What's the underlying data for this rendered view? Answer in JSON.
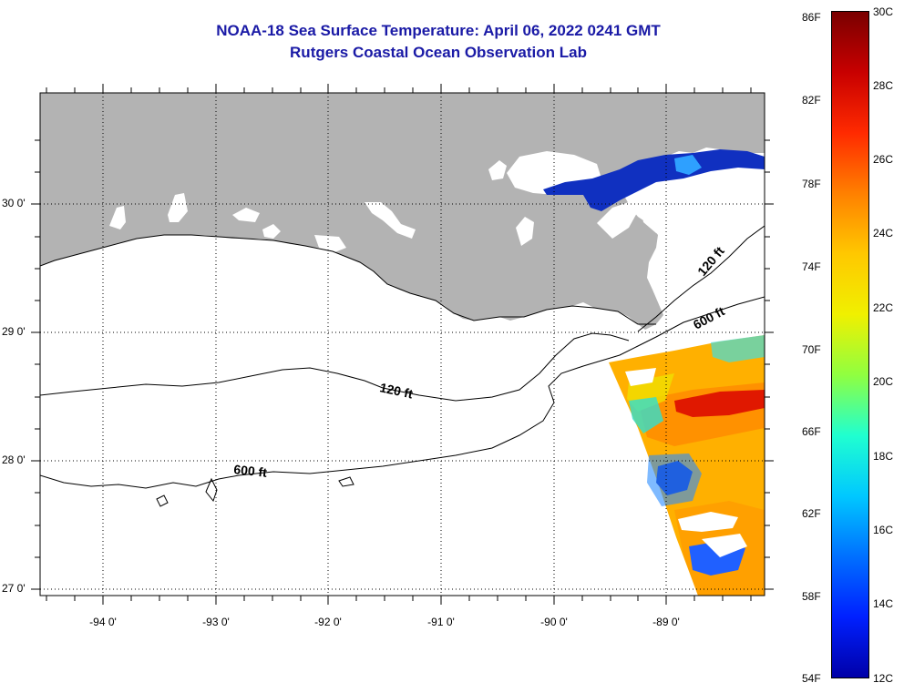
{
  "title": {
    "line1": "NOAA-18 Sea Surface Temperature:  April 06, 2022 0241 GMT",
    "line2": "Rutgers Coastal Ocean Observation Lab"
  },
  "map": {
    "longitude_labels": [
      "-94 0'",
      "-93 0'",
      "-92 0'",
      "-91 0'",
      "-90 0'",
      "-89 0'"
    ],
    "latitude_labels": [
      "30 0'",
      "29 0'",
      "28 0'",
      "27 0'"
    ],
    "contour_labels": [
      "120 ft",
      "600 ft",
      "120 ft",
      "600 ft"
    ],
    "colors": {
      "land": "#b3b3b3",
      "ocean_nodata": "#ffffff",
      "frame": "#000000"
    }
  },
  "colorbar": {
    "fahrenheit_labels": [
      "86F",
      "82F",
      "78F",
      "74F",
      "70F",
      "66F",
      "62F",
      "58F",
      "54F"
    ],
    "celsius_labels": [
      "30C",
      "28C",
      "26C",
      "24C",
      "22C",
      "20C",
      "18C",
      "16C",
      "14C",
      "12C"
    ],
    "gradient_colors": [
      "#7a0000",
      "#c80000",
      "#ff2a00",
      "#ff8000",
      "#ffc800",
      "#f0f000",
      "#90ff40",
      "#20ffd0",
      "#00c8ff",
      "#0070ff",
      "#0020ff",
      "#0000a8"
    ]
  }
}
